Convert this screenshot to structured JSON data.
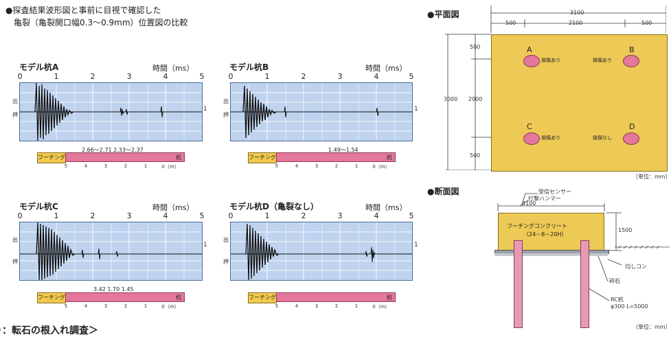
{
  "header": {
    "line1": "●探査結果波形図と事前に目視で確認した",
    "line2": "亀裂（亀裂開口幅0.3～0.9mm）位置図の比較"
  },
  "panels": [
    {
      "title": "モデル杭A",
      "time_unit": "時間（ms）",
      "markers": "2.66～2.71  2.33～2.37"
    },
    {
      "title": "モデル杭B",
      "time_unit": "時間（ms）",
      "markers": "1.49～1.54"
    },
    {
      "title": "モデル杭C",
      "time_unit": "時間（ms）",
      "markers": "3.42   1.70 1.45"
    },
    {
      "title": "モデル杭D（亀裂なし）",
      "time_unit": "時間（ms）",
      "markers": ""
    }
  ],
  "axis_ticks": [
    "0",
    "1",
    "2",
    "3",
    "4",
    "5"
  ],
  "scale_ticks": [
    "5",
    "4",
    "3",
    "2",
    "1",
    "0（m）"
  ],
  "chart_labels": {
    "out": "出",
    "in": "押",
    "one": "1",
    "footing": "フーチング",
    "pile": "杭"
  },
  "plan": {
    "heading": "●平面図",
    "top_total": "3100",
    "top_left": "500",
    "top_mid": "2100",
    "top_right": "500",
    "left_total": "3000",
    "left_mid": "2000",
    "left_top": "500",
    "left_bottom": "500",
    "piles": [
      {
        "id": "A",
        "note": "損傷あり"
      },
      {
        "id": "B",
        "note": "損傷あり"
      },
      {
        "id": "C",
        "note": "損傷あり"
      },
      {
        "id": "D",
        "note": "損傷なし"
      }
    ],
    "unit": "（単位：mm）"
  },
  "section": {
    "heading": "●断面図",
    "sensor": "受信センサー",
    "hammer": "打撃ハンマー",
    "width": "3100",
    "footing": "フーチングコンクリート",
    "grade": "（24－8－20H）",
    "height": "1500",
    "leveling": "均しコン",
    "gravel": "砕石",
    "pile": "RC杭",
    "pile_spec": "φ300  L=5000",
    "unit": "（単位：mm）"
  },
  "footer": "）：転石の根入れ調査＞",
  "colors": {
    "chart_bg": "#bfd3ee",
    "footing": "#f2c94c",
    "pile": "#e4779b",
    "concrete": "#edc956"
  }
}
